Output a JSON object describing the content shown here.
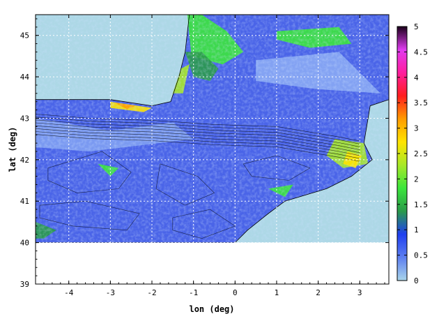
{
  "chart_data": {
    "type": "heatmap",
    "title": "",
    "xlabel": "lon (deg)",
    "ylabel": "lat (deg)",
    "xlim": [
      -4.8,
      3.7
    ],
    "ylim": [
      39,
      45.5
    ],
    "data_extent": {
      "lat_min": 40,
      "lat_max": 45.5,
      "lon_min": -4.8,
      "lon_max": 3.7
    },
    "x_ticks": [
      -4,
      -3,
      -2,
      -1,
      0,
      1,
      2,
      3
    ],
    "y_ticks": [
      39,
      40,
      41,
      42,
      43,
      44,
      45
    ],
    "x_tick_labels": [
      "-4",
      "-3",
      "-2",
      "-1",
      "0",
      "1",
      "2",
      "3"
    ],
    "y_tick_labels": [
      "39",
      "40",
      "41",
      "42",
      "43",
      "44",
      "45"
    ],
    "grid": true,
    "colorbar": {
      "min": 0,
      "max": 5,
      "ticks": [
        0,
        0.5,
        1,
        1.5,
        2,
        2.5,
        3,
        3.5,
        4,
        4.5,
        5
      ],
      "tick_labels": [
        "0",
        "0.5",
        "1",
        "1.5",
        "2",
        "2.5",
        "3",
        "3.5",
        "4",
        "4.5",
        "5"
      ],
      "colors": [
        "#a9d5ea",
        "#5d7ff0",
        "#1f3ff0",
        "#2a9a4a",
        "#3ce63c",
        "#a8e828",
        "#ffe400",
        "#ff9c00",
        "#ff1e1e",
        "#ff1e9e",
        "#e03cf0",
        "#1a001a"
      ],
      "placement": "right"
    },
    "background_color": "#add8e6"
  }
}
